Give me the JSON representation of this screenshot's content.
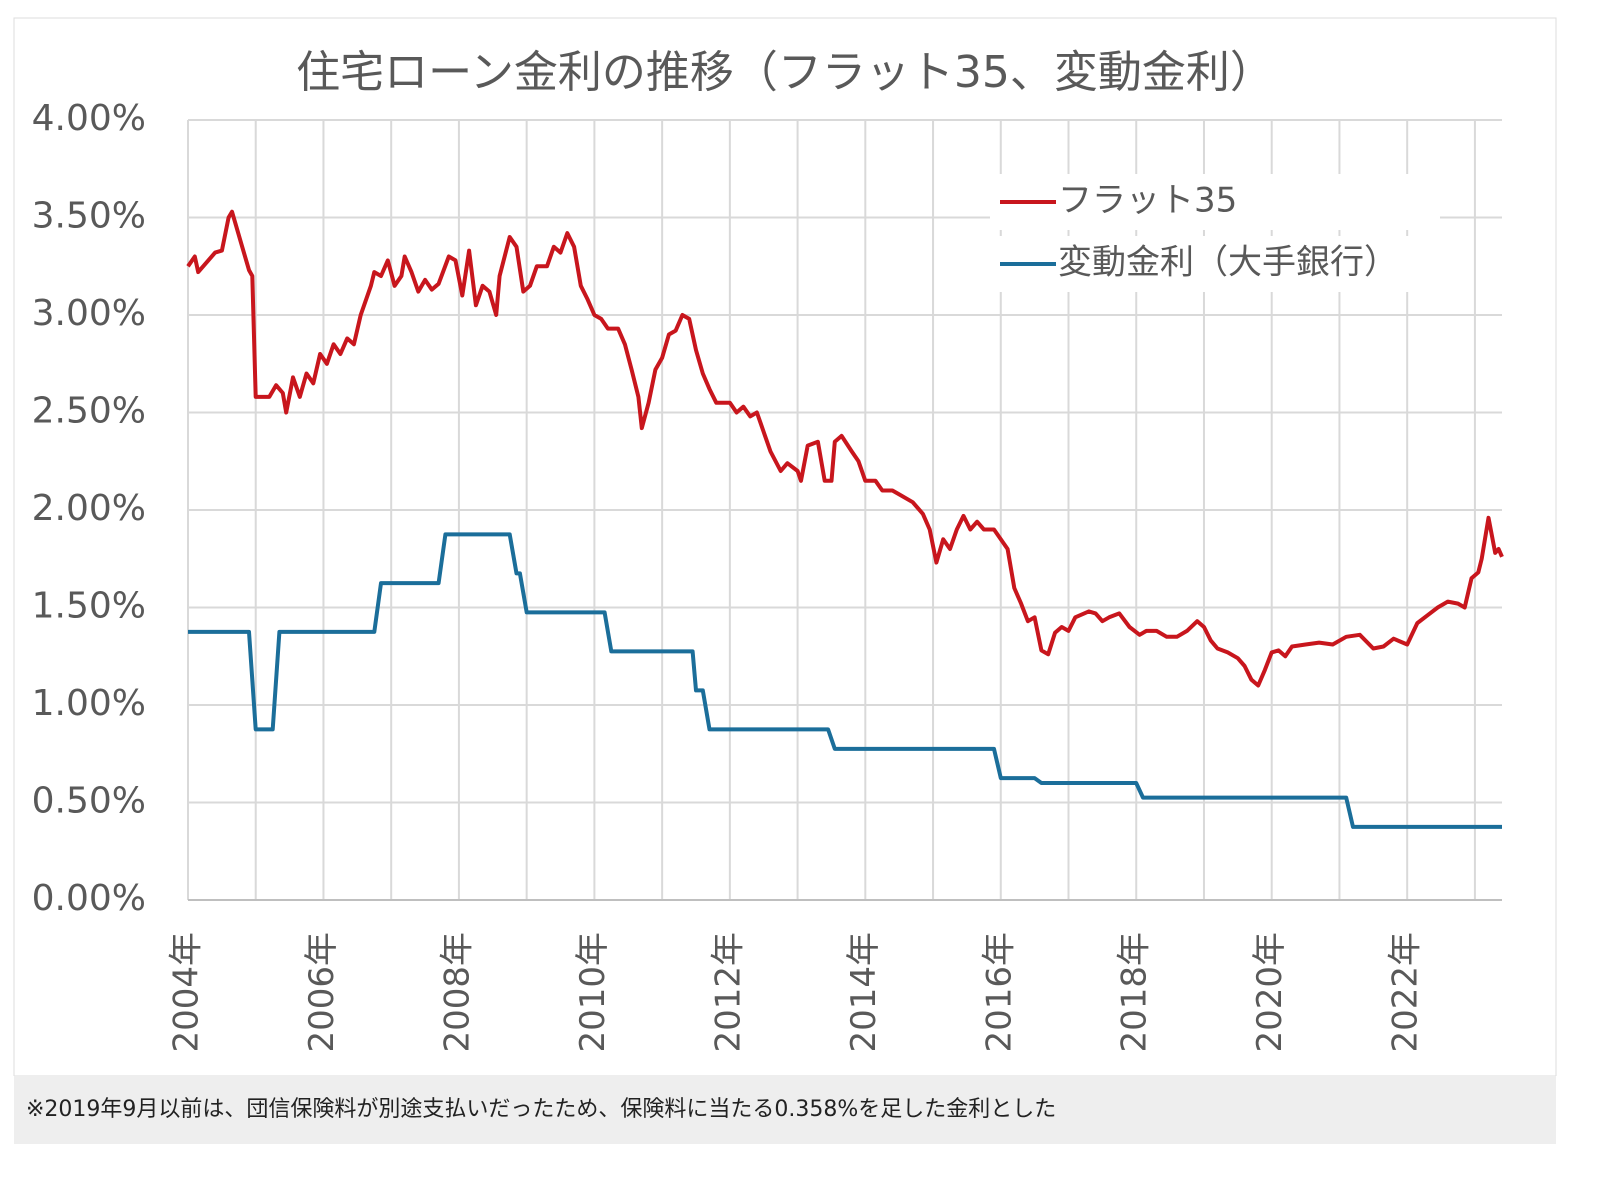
{
  "chart_data": {
    "type": "line",
    "title": "住宅ローン金利の推移（フラット35、変動金利）",
    "xlim": [
      2004,
      2023.4
    ],
    "ylim": [
      0,
      4
    ],
    "xticks": [
      {
        "value": 2004,
        "label": "2004年"
      },
      {
        "value": 2005,
        "label": null
      },
      {
        "value": 2006,
        "label": "2006年"
      },
      {
        "value": 2007,
        "label": null
      },
      {
        "value": 2008,
        "label": "2008年"
      },
      {
        "value": 2009,
        "label": null
      },
      {
        "value": 2010,
        "label": "2010年"
      },
      {
        "value": 2011,
        "label": null
      },
      {
        "value": 2012,
        "label": "2012年"
      },
      {
        "value": 2013,
        "label": null
      },
      {
        "value": 2014,
        "label": "2014年"
      },
      {
        "value": 2015,
        "label": null
      },
      {
        "value": 2016,
        "label": "2016年"
      },
      {
        "value": 2017,
        "label": null
      },
      {
        "value": 2018,
        "label": "2018年"
      },
      {
        "value": 2019,
        "label": null
      },
      {
        "value": 2020,
        "label": "2020年"
      },
      {
        "value": 2021,
        "label": null
      },
      {
        "value": 2022,
        "label": "2022年"
      },
      {
        "value": 2023,
        "label": null
      }
    ],
    "yticks": [
      {
        "value": 0,
        "label": "0.00%"
      },
      {
        "value": 0.5,
        "label": "0.50%"
      },
      {
        "value": 1,
        "label": "1.00%"
      },
      {
        "value": 1.5,
        "label": "1.50%"
      },
      {
        "value": 2,
        "label": "2.00%"
      },
      {
        "value": 2.5,
        "label": "2.50%"
      },
      {
        "value": 3,
        "label": "3.00%"
      },
      {
        "value": 3.5,
        "label": "3.50%"
      },
      {
        "value": 4,
        "label": "4.00%"
      }
    ],
    "grid": true,
    "legend": "upper right",
    "series": [
      {
        "name": "フラット35",
        "color": "#c8161d",
        "x": [
          2004.0,
          2004.1,
          2004.15,
          2004.3,
          2004.4,
          2004.5,
          2004.6,
          2004.65,
          2004.8,
          2004.9,
          2004.95,
          2005.0,
          2005.2,
          2005.3,
          2005.4,
          2005.45,
          2005.55,
          2005.65,
          2005.75,
          2005.85,
          2005.95,
          2006.05,
          2006.15,
          2006.25,
          2006.35,
          2006.45,
          2006.55,
          2006.7,
          2006.75,
          2006.85,
          2006.95,
          2007.05,
          2007.15,
          2007.2,
          2007.3,
          2007.4,
          2007.5,
          2007.6,
          2007.7,
          2007.85,
          2007.95,
          2008.05,
          2008.15,
          2008.25,
          2008.35,
          2008.45,
          2008.55,
          2008.6,
          2008.75,
          2008.85,
          2008.95,
          2009.05,
          2009.15,
          2009.3,
          2009.4,
          2009.5,
          2009.6,
          2009.7,
          2009.8,
          2009.9,
          2010.0,
          2010.1,
          2010.2,
          2010.35,
          2010.45,
          2010.55,
          2010.65,
          2010.7,
          2010.8,
          2010.9,
          2011.0,
          2011.1,
          2011.2,
          2011.3,
          2011.4,
          2011.5,
          2011.6,
          2011.7,
          2011.8,
          2012.0,
          2012.1,
          2012.2,
          2012.3,
          2012.4,
          2012.5,
          2012.6,
          2012.75,
          2012.85,
          2013.0,
          2013.05,
          2013.15,
          2013.3,
          2013.4,
          2013.5,
          2013.55,
          2013.65,
          2013.8,
          2013.9,
          2014.0,
          2014.15,
          2014.25,
          2014.4,
          2014.5,
          2014.7,
          2014.85,
          2014.95,
          2015.05,
          2015.15,
          2015.25,
          2015.35,
          2015.45,
          2015.55,
          2015.65,
          2015.75,
          2015.9,
          2016.1,
          2016.2,
          2016.3,
          2016.4,
          2016.5,
          2016.6,
          2016.7,
          2016.8,
          2016.9,
          2017.0,
          2017.1,
          2017.3,
          2017.4,
          2017.5,
          2017.6,
          2017.75,
          2017.9,
          2018.05,
          2018.15,
          2018.3,
          2018.45,
          2018.6,
          2018.75,
          2018.9,
          2019.0,
          2019.1,
          2019.2,
          2019.35,
          2019.5,
          2019.6,
          2019.7,
          2019.8,
          2019.9,
          2020.0,
          2020.1,
          2020.2,
          2020.3,
          2020.5,
          2020.7,
          2020.9,
          2021.1,
          2021.3,
          2021.5,
          2021.65,
          2021.8,
          2022.0,
          2022.15,
          2022.3,
          2022.45,
          2022.6,
          2022.75,
          2022.85,
          2022.95,
          2023.05,
          2023.1,
          2023.2,
          2023.3,
          2023.35,
          2023.4
        ],
        "values": [
          3.25,
          3.3,
          3.22,
          3.28,
          3.32,
          3.33,
          3.5,
          3.53,
          3.35,
          3.23,
          3.2,
          2.58,
          2.58,
          2.64,
          2.6,
          2.5,
          2.68,
          2.58,
          2.7,
          2.65,
          2.8,
          2.75,
          2.85,
          2.8,
          2.88,
          2.85,
          3.0,
          3.15,
          3.22,
          3.2,
          3.28,
          3.15,
          3.2,
          3.3,
          3.22,
          3.12,
          3.18,
          3.13,
          3.16,
          3.3,
          3.28,
          3.1,
          3.33,
          3.05,
          3.15,
          3.12,
          3.0,
          3.2,
          3.4,
          3.35,
          3.12,
          3.15,
          3.25,
          3.25,
          3.35,
          3.32,
          3.42,
          3.35,
          3.15,
          3.08,
          3.0,
          2.98,
          2.93,
          2.93,
          2.85,
          2.72,
          2.58,
          2.42,
          2.55,
          2.72,
          2.78,
          2.9,
          2.92,
          3.0,
          2.98,
          2.82,
          2.7,
          2.62,
          2.55,
          2.55,
          2.5,
          2.53,
          2.48,
          2.5,
          2.4,
          2.3,
          2.2,
          2.24,
          2.2,
          2.15,
          2.33,
          2.35,
          2.15,
          2.15,
          2.35,
          2.38,
          2.3,
          2.25,
          2.15,
          2.15,
          2.1,
          2.1,
          2.08,
          2.04,
          1.98,
          1.9,
          1.73,
          1.85,
          1.8,
          1.9,
          1.97,
          1.9,
          1.94,
          1.9,
          1.9,
          1.8,
          1.6,
          1.52,
          1.43,
          1.45,
          1.28,
          1.26,
          1.37,
          1.4,
          1.38,
          1.45,
          1.48,
          1.47,
          1.43,
          1.45,
          1.47,
          1.4,
          1.36,
          1.38,
          1.38,
          1.35,
          1.35,
          1.38,
          1.43,
          1.4,
          1.33,
          1.29,
          1.27,
          1.24,
          1.2,
          1.13,
          1.1,
          1.18,
          1.27,
          1.28,
          1.25,
          1.3,
          1.31,
          1.32,
          1.31,
          1.35,
          1.36,
          1.29,
          1.3,
          1.34,
          1.31,
          1.42,
          1.46,
          1.5,
          1.53,
          1.52,
          1.5,
          1.65,
          1.68,
          1.75,
          1.96,
          1.78,
          1.8,
          1.76
        ]
      },
      {
        "name": "変動金利（大手銀行）",
        "color": "#1b6e9a",
        "x": [
          2004.0,
          2004.9,
          2005.0,
          2005.25,
          2005.35,
          2006.75,
          2006.85,
          2007.7,
          2007.8,
          2008.75,
          2008.85,
          2008.9,
          2009.0,
          2010.15,
          2010.25,
          2011.45,
          2011.5,
          2011.6,
          2011.7,
          2013.45,
          2013.55,
          2015.9,
          2016.0,
          2016.5,
          2016.6,
          2018.0,
          2018.1,
          2021.1,
          2021.2,
          2023.4
        ],
        "values": [
          1.375,
          1.375,
          0.875,
          0.875,
          1.375,
          1.375,
          1.625,
          1.625,
          1.875,
          1.875,
          1.675,
          1.675,
          1.475,
          1.475,
          1.275,
          1.275,
          1.075,
          1.075,
          0.875,
          0.875,
          0.775,
          0.775,
          0.625,
          0.625,
          0.6,
          0.6,
          0.525,
          0.525,
          0.375,
          0.375
        ]
      }
    ],
    "note": "※2019年9月以前は、団信保険料が別途支払いだったため、保険料に当たる0.358%を足した金利とした"
  }
}
